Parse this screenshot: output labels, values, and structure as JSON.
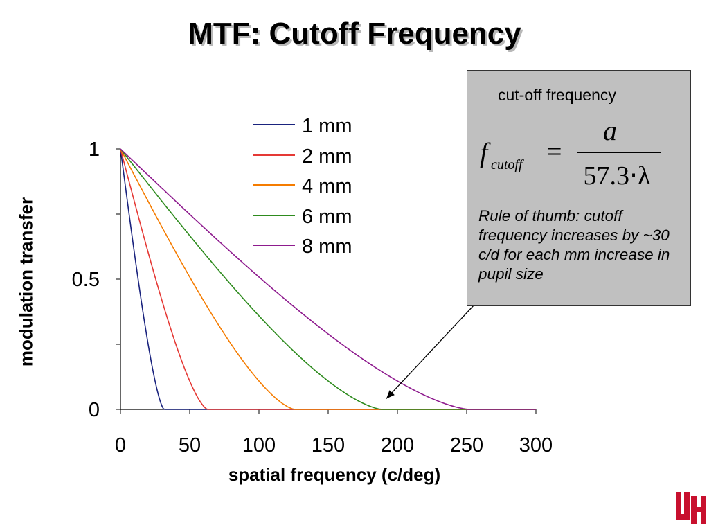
{
  "page": {
    "title": "MTF: Cutoff Frequency"
  },
  "chart_data": {
    "type": "line",
    "title": "MTF: Cutoff Frequency",
    "xlabel": "spatial frequency (c/deg)",
    "ylabel": "modulation transfer",
    "xlim": [
      0,
      300
    ],
    "ylim": [
      0,
      1
    ],
    "x_ticks": [
      "0",
      "50",
      "100",
      "150",
      "200",
      "250",
      "300"
    ],
    "x_tick_values": [
      0,
      50,
      100,
      150,
      200,
      250,
      300
    ],
    "y_ticks": [
      "0",
      "0.5",
      "1"
    ],
    "y_tick_values": [
      0,
      0.5,
      1
    ],
    "y_minor_ticks": [
      0.25,
      0.75
    ],
    "grid": false,
    "legend_position": "top-center",
    "series": [
      {
        "name": "1 mm",
        "color": "#1a237e",
        "cutoff": 31.5,
        "x": [
          0,
          300
        ],
        "y": [
          1,
          0
        ]
      },
      {
        "name": "2 mm",
        "color": "#e53935",
        "cutoff": 63,
        "x": [
          0,
          300
        ],
        "y": [
          1,
          0
        ]
      },
      {
        "name": "4 mm",
        "color": "#f57c00",
        "cutoff": 126,
        "x": [
          0,
          300
        ],
        "y": [
          1,
          0
        ]
      },
      {
        "name": "6 mm",
        "color": "#2e8b1e",
        "cutoff": 189,
        "x": [
          0,
          300
        ],
        "y": [
          1,
          0
        ]
      },
      {
        "name": "8 mm",
        "color": "#8e1b8e",
        "cutoff": 252,
        "x": [
          0,
          300
        ],
        "y": [
          1,
          0
        ]
      }
    ],
    "annotation": {
      "heading": "cut-off frequency",
      "formula_f": "f",
      "formula_sub": "cutoff",
      "formula_eq": "=",
      "formula_num": "a",
      "formula_den": "57.3⋅λ",
      "rule": "Rule of thumb: cutoff frequency increases by ~30 c/d for each mm increase in pupil size",
      "arrow_target_x": 189,
      "arrow_target_y": 0.02
    }
  },
  "logo": {
    "icon": "uh-logo-icon",
    "color": "#c8102e"
  }
}
